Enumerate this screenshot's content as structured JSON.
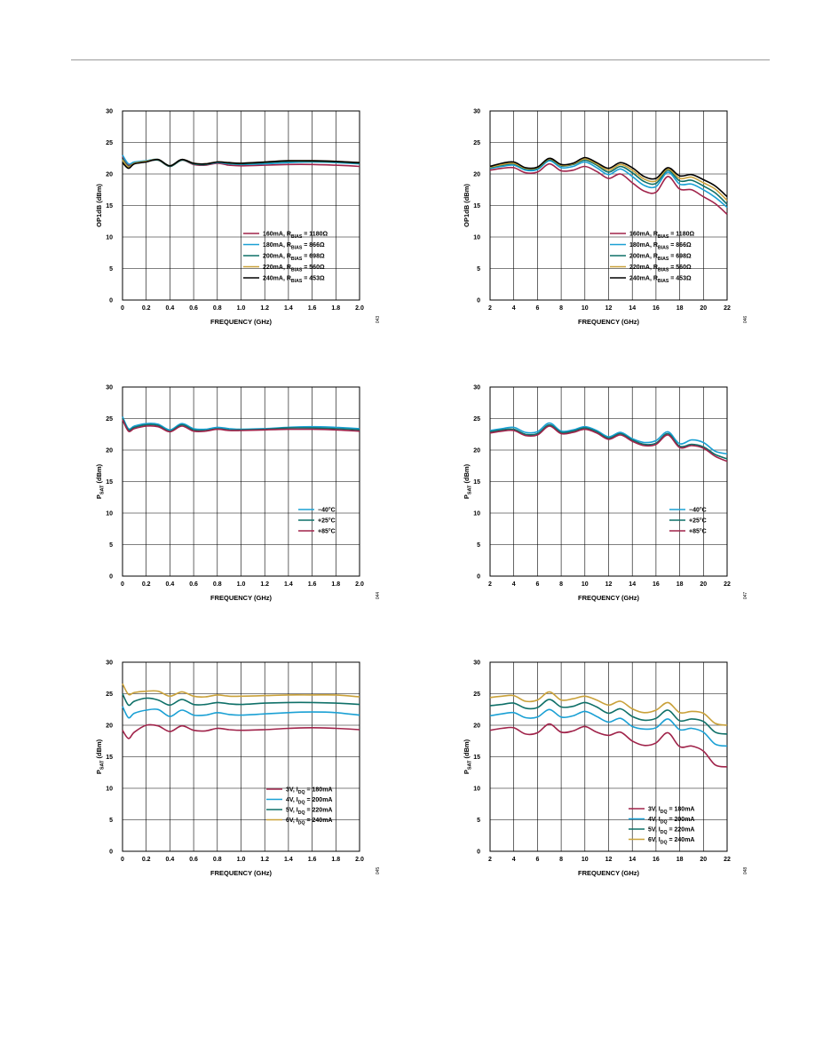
{
  "page": {
    "header_rule": true
  },
  "legend_sets": {
    "rbias": [
      {
        "main": "160mA, R",
        "sub": "BIAS",
        "tail": " = 1180Ω",
        "color": "#a0234a"
      },
      {
        "main": "180mA, R",
        "sub": "BIAS",
        "tail": " = 866Ω",
        "color": "#1aa0d4"
      },
      {
        "main": "200mA, R",
        "sub": "BIAS",
        "tail": " = 698Ω",
        "color": "#0f7068"
      },
      {
        "main": "220mA, R",
        "sub": "BIAS",
        "tail": " = 560Ω",
        "color": "#c9a13a"
      },
      {
        "main": "240mA, R",
        "sub": "BIAS",
        "tail": " = 453Ω",
        "color": "#000000"
      }
    ],
    "temp": [
      {
        "main": "−40°C",
        "sub": "",
        "tail": "",
        "color": "#1aa0d4"
      },
      {
        "main": "+25°C",
        "sub": "",
        "tail": "",
        "color": "#0f7068"
      },
      {
        "main": "+85°C",
        "sub": "",
        "tail": "",
        "color": "#a0234a"
      }
    ],
    "vdd": [
      {
        "main": "3V, I",
        "sub": "DQ",
        "tail": " = 180mA",
        "color": "#a0234a"
      },
      {
        "main": "4V, I",
        "sub": "DQ",
        "tail": " = 200mA",
        "color": "#1aa0d4"
      },
      {
        "main": "5V, I",
        "sub": "DQ",
        "tail": " = 220mA",
        "color": "#0f7068"
      },
      {
        "main": "6V, I",
        "sub": "DQ",
        "tail": " = 240mA",
        "color": "#c9a13a"
      }
    ]
  },
  "chart_data": [
    {
      "type": "line",
      "ylabel": {
        "main": "OP1dB (dBm)",
        "sub": ""
      },
      "xlabel": "FREQUENCY (GHz)",
      "xlim": [
        0,
        2.0
      ],
      "ylim": [
        0,
        30
      ],
      "xticks": [
        "0",
        "0.2",
        "0.4",
        "0.6",
        "0.8",
        "1.0",
        "1.2",
        "1.4",
        "1.6",
        "1.8",
        "2.0"
      ],
      "yticks": [
        "0",
        "5",
        "10",
        "15",
        "20",
        "25",
        "30"
      ],
      "figure_number": "043",
      "legend_set": "rbias",
      "x": [
        0,
        0.05,
        0.1,
        0.2,
        0.3,
        0.4,
        0.5,
        0.6,
        0.7,
        0.8,
        0.9,
        1.0,
        1.2,
        1.4,
        1.6,
        1.8,
        2.0
      ],
      "series": [
        {
          "name": "160mA, RBIAS = 1180Ω",
          "values": [
            22.8,
            21.4,
            21.8,
            22.0,
            22.2,
            21.2,
            22.2,
            21.5,
            21.4,
            21.7,
            21.4,
            21.3,
            21.4,
            21.5,
            21.5,
            21.4,
            21.2
          ]
        },
        {
          "name": "180mA, RBIAS = 866Ω",
          "values": [
            23.0,
            21.6,
            21.9,
            22.1,
            22.3,
            21.3,
            22.3,
            21.6,
            21.5,
            21.8,
            21.6,
            21.5,
            21.6,
            21.8,
            21.9,
            21.8,
            21.6
          ]
        },
        {
          "name": "200mA, RBIAS = 698Ω",
          "values": [
            22.4,
            21.2,
            21.7,
            22.0,
            22.2,
            21.2,
            22.2,
            21.6,
            21.5,
            21.9,
            21.7,
            21.6,
            21.8,
            22.0,
            22.0,
            21.9,
            21.7
          ]
        },
        {
          "name": "220mA, RBIAS = 560Ω",
          "values": [
            22.2,
            21.1,
            21.7,
            22.0,
            22.3,
            21.3,
            22.3,
            21.7,
            21.6,
            21.9,
            21.8,
            21.7,
            21.9,
            22.1,
            22.1,
            22.0,
            21.8
          ]
        },
        {
          "name": "240mA, RBIAS = 453Ω",
          "values": [
            21.8,
            20.9,
            21.6,
            21.9,
            22.3,
            21.3,
            22.3,
            21.7,
            21.6,
            21.9,
            21.8,
            21.7,
            21.9,
            22.1,
            22.1,
            22.0,
            21.8
          ]
        }
      ]
    },
    {
      "type": "line",
      "ylabel": {
        "main": "OP1dB (dBm)",
        "sub": ""
      },
      "xlabel": "FREQUENCY (GHz)",
      "xlim": [
        2,
        22
      ],
      "ylim": [
        0,
        30
      ],
      "xticks": [
        "2",
        "4",
        "6",
        "8",
        "10",
        "12",
        "14",
        "16",
        "18",
        "20",
        "22"
      ],
      "yticks": [
        "0",
        "5",
        "10",
        "15",
        "20",
        "25",
        "30"
      ],
      "figure_number": "046",
      "legend_set": "rbias",
      "x": [
        2,
        3,
        4,
        5,
        6,
        7,
        8,
        9,
        10,
        11,
        12,
        13,
        14,
        15,
        16,
        17,
        18,
        19,
        20,
        21,
        22
      ],
      "series": [
        {
          "name": "160mA, RBIAS = 1180Ω",
          "values": [
            20.6,
            20.9,
            21.0,
            20.2,
            20.3,
            21.6,
            20.5,
            20.6,
            21.2,
            20.4,
            19.3,
            20.0,
            18.6,
            17.3,
            17.1,
            19.6,
            17.6,
            17.5,
            16.4,
            15.3,
            13.6
          ]
        },
        {
          "name": "180mA, RBIAS = 866Ω",
          "values": [
            20.9,
            21.2,
            21.4,
            20.6,
            20.7,
            22.1,
            21.0,
            21.2,
            21.9,
            21.0,
            19.9,
            20.8,
            19.6,
            18.2,
            18.0,
            20.3,
            18.4,
            18.4,
            17.5,
            16.3,
            14.7
          ]
        },
        {
          "name": "200mA, RBIAS = 698Ω",
          "values": [
            21.0,
            21.4,
            21.6,
            20.8,
            20.9,
            22.3,
            21.3,
            21.5,
            22.2,
            21.4,
            20.3,
            21.2,
            20.2,
            18.8,
            18.5,
            20.6,
            18.9,
            19.0,
            18.1,
            17.0,
            15.2
          ]
        },
        {
          "name": "220mA, RBIAS = 560Ω",
          "values": [
            21.1,
            21.5,
            21.7,
            20.9,
            21.0,
            22.4,
            21.4,
            21.6,
            22.4,
            21.6,
            20.6,
            21.5,
            20.6,
            19.2,
            18.9,
            20.8,
            19.3,
            19.5,
            18.6,
            17.6,
            15.8
          ]
        },
        {
          "name": "240mA, RBIAS = 453Ω",
          "values": [
            21.2,
            21.7,
            21.9,
            21.0,
            21.1,
            22.5,
            21.5,
            21.7,
            22.6,
            21.8,
            20.9,
            21.8,
            21.0,
            19.6,
            19.3,
            21.0,
            19.7,
            19.9,
            19.1,
            18.1,
            16.4
          ]
        }
      ]
    },
    {
      "type": "line",
      "ylabel": {
        "main": "P",
        "sub": "SAT",
        "tail": " (dBm)"
      },
      "xlabel": "FREQUENCY (GHz)",
      "xlim": [
        0,
        2.0
      ],
      "ylim": [
        0,
        30
      ],
      "xticks": [
        "0",
        "0.2",
        "0.4",
        "0.6",
        "0.8",
        "1.0",
        "1.2",
        "1.4",
        "1.6",
        "1.8",
        "2.0"
      ],
      "yticks": [
        "0",
        "5",
        "10",
        "15",
        "20",
        "25",
        "30"
      ],
      "figure_number": "044",
      "legend_set": "temp",
      "x": [
        0,
        0.05,
        0.1,
        0.2,
        0.3,
        0.4,
        0.5,
        0.6,
        0.7,
        0.8,
        0.9,
        1.0,
        1.2,
        1.4,
        1.6,
        1.8,
        2.0
      ],
      "series": [
        {
          "name": "−40°C",
          "values": [
            25.3,
            23.4,
            23.8,
            24.2,
            24.1,
            23.2,
            24.2,
            23.4,
            23.3,
            23.6,
            23.4,
            23.3,
            23.4,
            23.6,
            23.7,
            23.6,
            23.4
          ]
        },
        {
          "name": "+25°C",
          "values": [
            25.0,
            23.2,
            23.6,
            24.0,
            23.9,
            23.0,
            24.0,
            23.2,
            23.1,
            23.4,
            23.2,
            23.2,
            23.3,
            23.5,
            23.5,
            23.4,
            23.2
          ]
        },
        {
          "name": "+85°C",
          "values": [
            24.8,
            23.0,
            23.4,
            23.8,
            23.7,
            22.9,
            23.8,
            23.0,
            23.0,
            23.3,
            23.1,
            23.1,
            23.2,
            23.3,
            23.3,
            23.2,
            23.0
          ]
        }
      ]
    },
    {
      "type": "line",
      "ylabel": {
        "main": "P",
        "sub": "SAT",
        "tail": " (dBm)"
      },
      "xlabel": "FREQUENCY (GHz)",
      "xlim": [
        2,
        22
      ],
      "ylim": [
        0,
        30
      ],
      "xticks": [
        "2",
        "4",
        "6",
        "8",
        "10",
        "12",
        "14",
        "16",
        "18",
        "20",
        "22"
      ],
      "yticks": [
        "0",
        "5",
        "10",
        "15",
        "20",
        "25",
        "30"
      ],
      "figure_number": "047",
      "legend_set": "temp",
      "x": [
        2,
        3,
        4,
        5,
        6,
        7,
        8,
        9,
        10,
        11,
        12,
        13,
        14,
        15,
        16,
        17,
        18,
        19,
        20,
        21,
        22
      ],
      "series": [
        {
          "name": "−40°C",
          "values": [
            23.1,
            23.4,
            23.6,
            22.8,
            22.9,
            24.3,
            23.0,
            23.2,
            23.7,
            23.1,
            22.1,
            22.8,
            21.8,
            21.2,
            21.5,
            22.9,
            21.0,
            21.6,
            21.2,
            19.8,
            19.4
          ]
        },
        {
          "name": "+25°C",
          "values": [
            22.9,
            23.2,
            23.3,
            22.5,
            22.6,
            24.0,
            22.8,
            23.0,
            23.5,
            22.9,
            21.9,
            22.6,
            21.6,
            20.9,
            21.1,
            22.6,
            20.6,
            20.9,
            20.5,
            19.3,
            18.6
          ]
        },
        {
          "name": "+85°C",
          "values": [
            22.7,
            23.0,
            23.1,
            22.3,
            22.4,
            23.8,
            22.6,
            22.8,
            23.3,
            22.7,
            21.7,
            22.4,
            21.4,
            20.7,
            20.9,
            22.4,
            20.4,
            20.7,
            20.3,
            19.0,
            18.2
          ]
        }
      ]
    },
    {
      "type": "line",
      "ylabel": {
        "main": "P",
        "sub": "SAT",
        "tail": " (dBm)"
      },
      "xlabel": "FREQUENCY (GHz)",
      "xlim": [
        0,
        2.0
      ],
      "ylim": [
        0,
        30
      ],
      "xticks": [
        "0",
        "0.2",
        "0.4",
        "0.6",
        "0.8",
        "1.0",
        "1.2",
        "1.4",
        "1.6",
        "1.8",
        "2.0"
      ],
      "yticks": [
        "0",
        "5",
        "10",
        "15",
        "20",
        "25",
        "30"
      ],
      "figure_number": "045",
      "legend_set": "vdd",
      "x": [
        0,
        0.05,
        0.1,
        0.2,
        0.3,
        0.4,
        0.5,
        0.6,
        0.7,
        0.8,
        0.9,
        1.0,
        1.2,
        1.4,
        1.6,
        1.8,
        2.0
      ],
      "series": [
        {
          "name": "3V, IDQ = 180mA",
          "values": [
            19.2,
            17.9,
            18.9,
            20.0,
            19.9,
            19.0,
            19.9,
            19.2,
            19.1,
            19.5,
            19.3,
            19.2,
            19.3,
            19.5,
            19.6,
            19.5,
            19.3
          ]
        },
        {
          "name": "4V, IDQ = 200mA",
          "values": [
            23.0,
            21.2,
            21.9,
            22.4,
            22.5,
            21.4,
            22.4,
            21.6,
            21.6,
            22.0,
            21.7,
            21.6,
            21.8,
            22.0,
            22.1,
            22.0,
            21.6
          ]
        },
        {
          "name": "5V, IDQ = 220mA",
          "values": [
            25.0,
            23.2,
            23.8,
            24.3,
            24.0,
            23.2,
            24.1,
            23.3,
            23.3,
            23.6,
            23.4,
            23.3,
            23.5,
            23.6,
            23.6,
            23.5,
            23.3
          ]
        },
        {
          "name": "6V, IDQ = 240mA",
          "values": [
            26.6,
            24.9,
            25.2,
            25.4,
            25.4,
            24.6,
            25.3,
            24.6,
            24.5,
            24.8,
            24.6,
            24.6,
            24.7,
            24.8,
            24.8,
            24.8,
            24.5
          ]
        }
      ]
    },
    {
      "type": "line",
      "ylabel": {
        "main": "P",
        "sub": "SAT",
        "tail": " (dBm)"
      },
      "xlabel": "FREQUENCY (GHz)",
      "xlim": [
        2,
        22
      ],
      "ylim": [
        0,
        30
      ],
      "xticks": [
        "2",
        "4",
        "6",
        "8",
        "10",
        "12",
        "14",
        "16",
        "18",
        "20",
        "22"
      ],
      "yticks": [
        "0",
        "5",
        "10",
        "15",
        "20",
        "25",
        "30"
      ],
      "figure_number": "048",
      "legend_set": "vdd",
      "x": [
        2,
        3,
        4,
        5,
        6,
        7,
        8,
        9,
        10,
        11,
        12,
        13,
        14,
        15,
        16,
        17,
        18,
        19,
        20,
        21,
        22
      ],
      "series": [
        {
          "name": "3V, IDQ = 180mA",
          "values": [
            19.2,
            19.5,
            19.6,
            18.6,
            18.8,
            20.2,
            18.9,
            19.1,
            19.8,
            18.9,
            18.4,
            18.9,
            17.5,
            16.8,
            17.2,
            18.8,
            16.6,
            16.7,
            15.9,
            13.7,
            13.4
          ]
        },
        {
          "name": "4V, IDQ = 200mA",
          "values": [
            21.5,
            21.8,
            22.0,
            21.2,
            21.3,
            22.5,
            21.3,
            21.5,
            22.2,
            21.4,
            20.5,
            21.1,
            19.8,
            19.4,
            19.6,
            21.0,
            19.3,
            19.5,
            18.9,
            17.0,
            16.7
          ]
        },
        {
          "name": "5V, IDQ = 220mA",
          "values": [
            23.1,
            23.3,
            23.5,
            22.7,
            22.8,
            24.1,
            22.9,
            23.0,
            23.6,
            22.9,
            21.9,
            22.6,
            21.4,
            20.8,
            21.1,
            22.4,
            20.7,
            21.0,
            20.6,
            18.9,
            18.6
          ]
        },
        {
          "name": "6V, IDQ = 240mA",
          "values": [
            24.4,
            24.6,
            24.7,
            23.8,
            24.0,
            25.3,
            24.0,
            24.2,
            24.6,
            24.0,
            23.2,
            23.8,
            22.6,
            22.0,
            22.4,
            23.6,
            22.0,
            22.2,
            21.9,
            20.3,
            20.0
          ]
        }
      ]
    }
  ]
}
